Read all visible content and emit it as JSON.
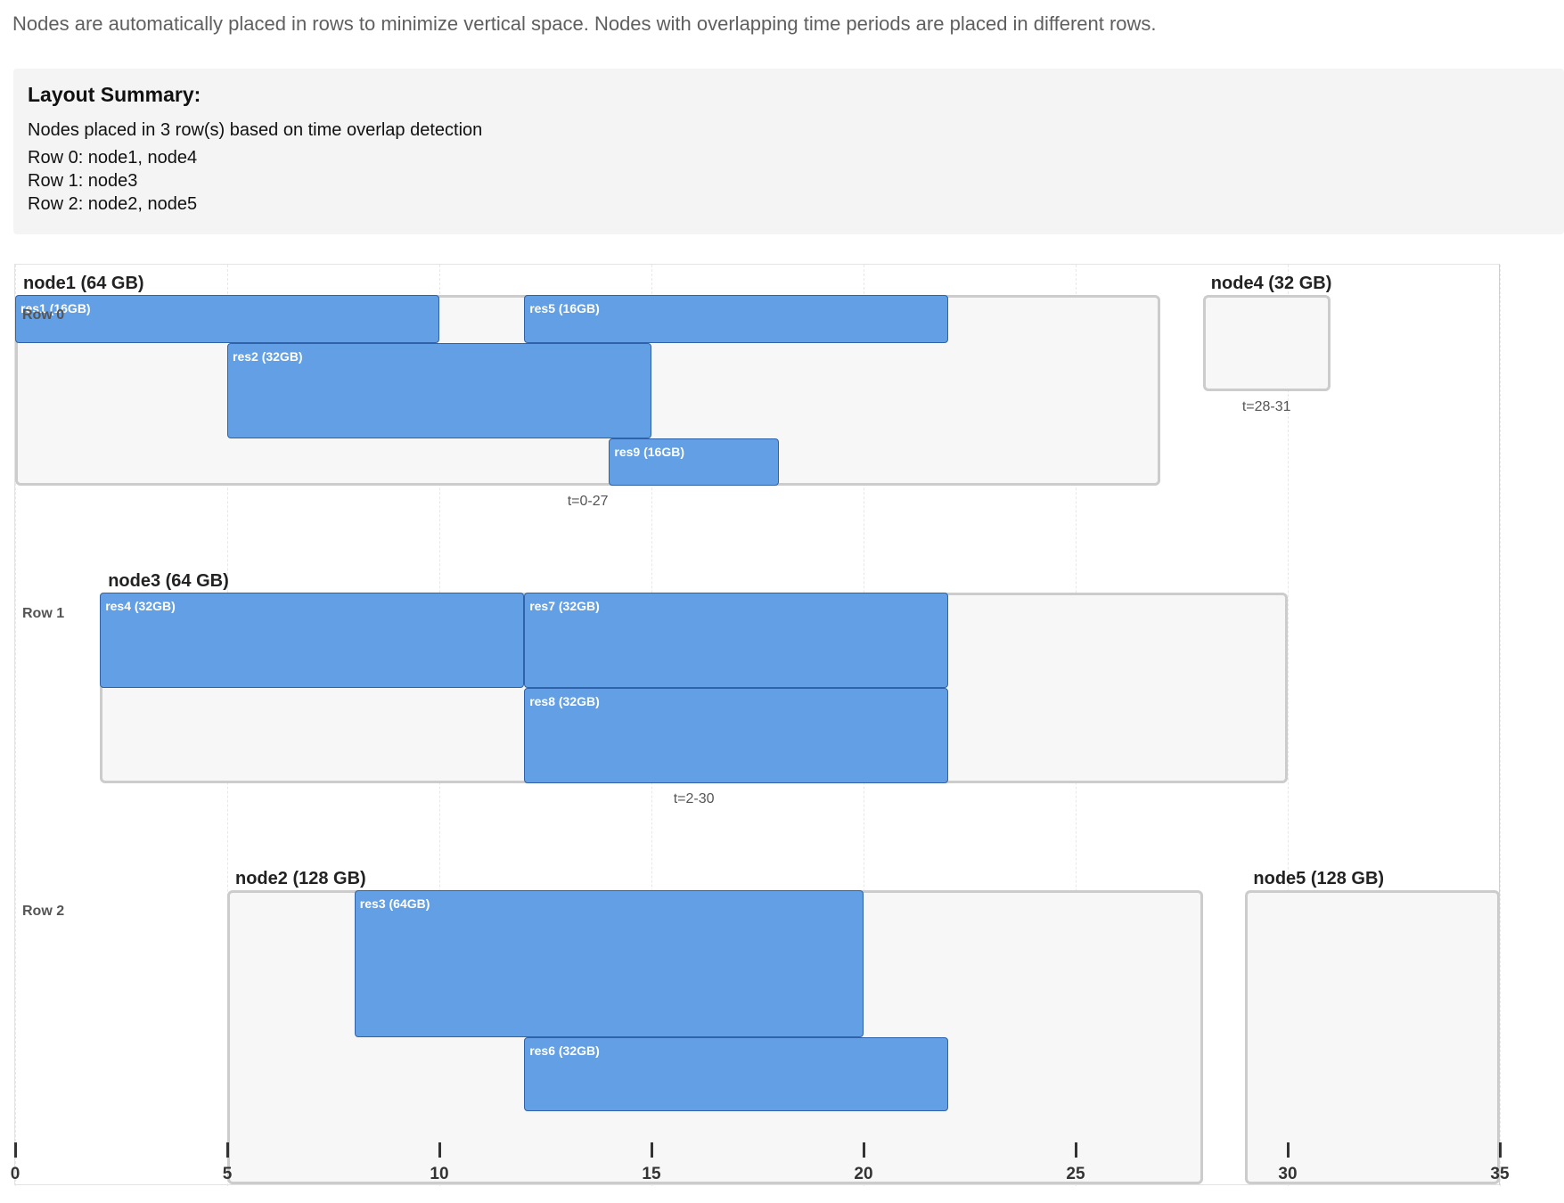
{
  "intro": "Nodes are automatically placed in rows to minimize vertical space. Nodes with overlapping time periods are placed in different rows.",
  "summary": {
    "title": "Layout Summary:",
    "lines": [
      "Nodes placed in 3 row(s) based on time overlap detection",
      "Row 0: node1, node4",
      "Row 1: node3",
      "Row 2: node2, node5"
    ]
  },
  "colors": {
    "reservation": "#629fe4",
    "reservation_border": "#2f62a8",
    "node_border": "#cccccc",
    "node_fill": "#f7f7f7"
  },
  "axis": {
    "min": 0,
    "max": 35,
    "ticks": [
      0,
      5,
      10,
      15,
      20,
      25,
      30,
      35
    ],
    "tick_labels": [
      "0",
      "5",
      "10",
      "15",
      "20",
      "25",
      "30",
      "35"
    ]
  },
  "rows": [
    {
      "label": "Row 0",
      "nodes": [
        {
          "title": "node1 (64 GB)",
          "time_label": "t=0-27",
          "start": 0,
          "end": 27,
          "capacity": 64,
          "reservations": [
            {
              "label": "res1 (16GB)",
              "start": 0,
              "end": 10,
              "offset": 0,
              "size": 16
            },
            {
              "label": "res5 (16GB)",
              "start": 12,
              "end": 22,
              "offset": 0,
              "size": 16
            },
            {
              "label": "res2 (32GB)",
              "start": 5,
              "end": 15,
              "offset": 16,
              "size": 32
            },
            {
              "label": "res9 (16GB)",
              "start": 14,
              "end": 18,
              "offset": 48,
              "size": 16
            }
          ]
        },
        {
          "title": "node4 (32 GB)",
          "time_label": "t=28-31",
          "start": 28,
          "end": 31,
          "capacity": 32,
          "reservations": []
        }
      ]
    },
    {
      "label": "Row 1",
      "nodes": [
        {
          "title": "node3 (64 GB)",
          "time_label": "t=2-30",
          "start": 2,
          "end": 30,
          "capacity": 64,
          "reservations": [
            {
              "label": "res4 (32GB)",
              "start": 2,
              "end": 12,
              "offset": 0,
              "size": 32
            },
            {
              "label": "res7 (32GB)",
              "start": 12,
              "end": 22,
              "offset": 0,
              "size": 32
            },
            {
              "label": "res8 (32GB)",
              "start": 12,
              "end": 22,
              "offset": 32,
              "size": 32
            }
          ]
        }
      ]
    },
    {
      "label": "Row 2",
      "nodes": [
        {
          "title": "node2 (128 GB)",
          "time_label": "",
          "start": 5,
          "end": 28,
          "capacity": 128,
          "reservations": [
            {
              "label": "res3 (64GB)",
              "start": 8,
              "end": 20,
              "offset": 0,
              "size": 64
            },
            {
              "label": "res6 (32GB)",
              "start": 12,
              "end": 22,
              "offset": 64,
              "size": 32
            }
          ]
        },
        {
          "title": "node5 (128 GB)",
          "time_label": "",
          "start": 29,
          "end": 35,
          "capacity": 128,
          "reservations": []
        }
      ]
    }
  ]
}
